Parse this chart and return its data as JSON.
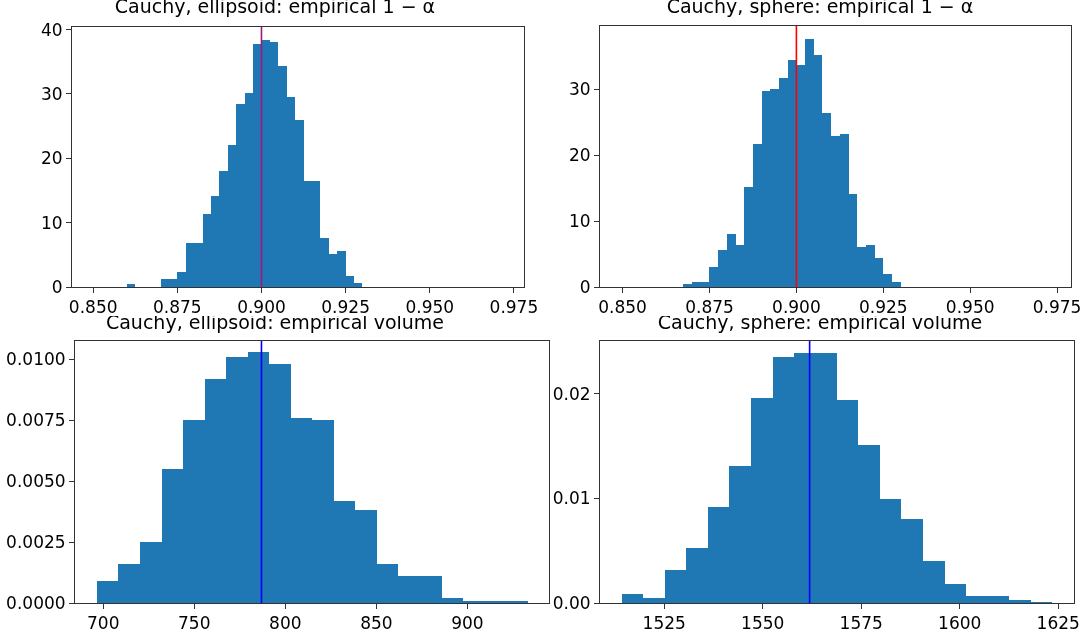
{
  "chart_data": [
    {
      "type": "histogram",
      "title": "Cauchy, ellipsoid: empirical 1 − α",
      "color": "#1f77b4",
      "bins": [
        0.86,
        0.8625,
        0.865,
        0.8675,
        0.87,
        0.8725,
        0.875,
        0.8775,
        0.88,
        0.8825,
        0.885,
        0.8875,
        0.89,
        0.8925,
        0.895,
        0.8975,
        0.9,
        0.9025,
        0.905,
        0.9075,
        0.91,
        0.9125,
        0.915,
        0.9175,
        0.92,
        0.9225,
        0.925,
        0.9275,
        0.93
      ],
      "values": [
        0.4,
        0,
        0,
        0,
        1.2,
        1.2,
        2.4,
        6.8,
        6.8,
        11.3,
        14.1,
        18.0,
        22.0,
        28.5,
        30.1,
        37.7,
        38.4,
        38.1,
        34.4,
        29.6,
        26.0,
        16.4,
        16.4,
        7.6,
        5.2,
        5.6,
        1.7,
        0.7
      ],
      "xlim": [
        0.8437,
        0.978
      ],
      "ylim": [
        0,
        40.4
      ],
      "xticks": [
        {
          "value": 0.85,
          "label": "0.850"
        },
        {
          "value": 0.875,
          "label": "0.875"
        },
        {
          "value": 0.9,
          "label": "0.900"
        },
        {
          "value": 0.925,
          "label": "0.925"
        },
        {
          "value": 0.95,
          "label": "0.950"
        },
        {
          "value": 0.975,
          "label": "0.975"
        }
      ],
      "yticks": [
        0,
        10,
        20,
        30,
        40
      ],
      "grid": false,
      "ref_lines": [
        {
          "axis": "x",
          "value": 0.9,
          "label": null,
          "color": "#a01880"
        }
      ]
    },
    {
      "type": "histogram",
      "title": "Cauchy, sphere: empirical 1 − α",
      "color": "#1f77b4",
      "bins": [
        0.8675,
        0.87,
        0.8725,
        0.875,
        0.8775,
        0.88,
        0.8825,
        0.885,
        0.8875,
        0.89,
        0.8925,
        0.895,
        0.8975,
        0.9,
        0.9025,
        0.905,
        0.9075,
        0.91,
        0.9125,
        0.915,
        0.9175,
        0.92,
        0.9225,
        0.925,
        0.9275,
        0.93
      ],
      "values": [
        0.4,
        0.7,
        0.7,
        3.1,
        5.6,
        8.0,
        6.3,
        15.2,
        21.7,
        29.7,
        30.1,
        31.7,
        34.5,
        33.7,
        37.6,
        35.2,
        26.4,
        22.9,
        23.2,
        14.1,
        6.0,
        6.3,
        4.4,
        1.9,
        0.7
      ],
      "xlim": [
        0.8435,
        0.979
      ],
      "ylim": [
        0,
        39.6
      ],
      "xticks": [
        {
          "value": 0.85,
          "label": "0.850"
        },
        {
          "value": 0.875,
          "label": "0.875"
        },
        {
          "value": 0.9,
          "label": "0.900"
        },
        {
          "value": 0.925,
          "label": "0.925"
        },
        {
          "value": 0.95,
          "label": "0.950"
        },
        {
          "value": 0.975,
          "label": "0.975"
        }
      ],
      "yticks": [
        0,
        10,
        20,
        30
      ],
      "grid": false,
      "ref_lines": [
        {
          "axis": "x",
          "value": 0.9,
          "label": null,
          "color": "#ff0000"
        }
      ]
    },
    {
      "type": "histogram",
      "title": "Cauchy, ellipsoid: empirical volume",
      "color": "#1f77b4",
      "bins": [
        696.5,
        708.3,
        720.2,
        732.0,
        743.8,
        755.7,
        767.5,
        779.3,
        791.1,
        803.0,
        814.8,
        826.6,
        838.5,
        850.3,
        862.1,
        874.0,
        885.8,
        897.6,
        909.4,
        921.3,
        933.1
      ],
      "values": [
        0.0009,
        0.0016,
        0.0025,
        0.0055,
        0.0075,
        0.0092,
        0.0101,
        0.0103,
        0.0098,
        0.0076,
        0.0075,
        0.0042,
        0.0038,
        0.0016,
        0.0011,
        0.0011,
        0.0002,
        0.0001,
        0.0001,
        0.0001
      ],
      "xlim": [
        684.5,
        944.8
      ],
      "ylim": [
        0,
        0.01075
      ],
      "xticks": [
        700,
        750,
        800,
        850,
        900
      ],
      "yticks": [
        {
          "value": 0,
          "label": "0.0000"
        },
        {
          "value": 0.0025,
          "label": "0.0025"
        },
        {
          "value": 0.005,
          "label": "0.0050"
        },
        {
          "value": 0.0075,
          "label": "0.0075"
        },
        {
          "value": 0.01,
          "label": "0.0100"
        }
      ],
      "grid": false,
      "ref_lines": [
        {
          "axis": "x",
          "value": 786.9,
          "label": null,
          "color": "#0000ff"
        }
      ]
    },
    {
      "type": "histogram",
      "title": "Cauchy, sphere: empirical volume",
      "color": "#1f77b4",
      "bins": [
        1514.2,
        1519.7,
        1525.1,
        1530.6,
        1536.1,
        1541.5,
        1547.0,
        1552.5,
        1557.9,
        1563.4,
        1568.9,
        1574.3,
        1579.8,
        1585.2,
        1590.7,
        1596.2,
        1601.6,
        1607.1,
        1612.6,
        1618.0,
        1623.5
      ],
      "values": [
        0.0009,
        0.0005,
        0.0032,
        0.0053,
        0.0092,
        0.0131,
        0.0196,
        0.0235,
        0.0239,
        0.0239,
        0.0194,
        0.0151,
        0.0099,
        0.008,
        0.004,
        0.0018,
        0.0007,
        0.0007,
        0.0003,
        0.0001
      ],
      "xlim": [
        1508.7,
        1629.0
      ],
      "ylim": [
        0,
        0.02503
      ],
      "xticks": [
        1525,
        1550,
        1575,
        1600,
        1625
      ],
      "yticks": [
        {
          "value": 0,
          "label": "0.00"
        },
        {
          "value": 0.01,
          "label": "0.01"
        },
        {
          "value": 0.02,
          "label": "0.02"
        }
      ],
      "grid": false,
      "ref_lines": [
        {
          "axis": "x",
          "value": 1561.9,
          "label": null,
          "color": "#0000ff"
        }
      ]
    }
  ]
}
